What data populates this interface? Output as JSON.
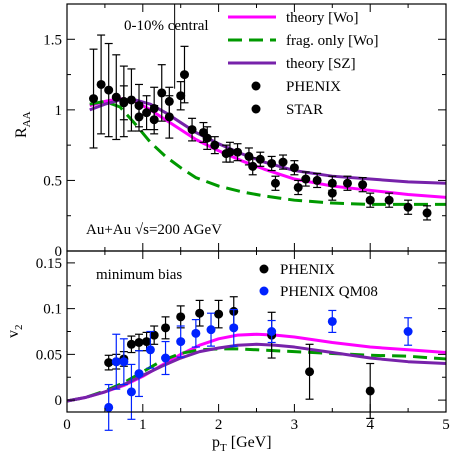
{
  "chart_data": [
    {
      "type": "scatter",
      "panel": "top",
      "ylabel_main": "R",
      "ylabel_sub": "AA",
      "xlim": [
        0,
        5
      ],
      "ylim": [
        0,
        1.75
      ],
      "x_ticks": [
        0,
        1,
        2,
        3,
        4,
        5
      ],
      "y_ticks": [
        0,
        0.5,
        1,
        1.5
      ],
      "y_tick_labels": [
        "0",
        "0.5",
        "1",
        "1.5"
      ],
      "annotations": {
        "centrality": "0-10% central",
        "system": "Au+Au √s=200 AGeV"
      },
      "legend_placement": "top-right",
      "vertical_marker_x": 1.42,
      "series": [
        {
          "name": "theory [Wo]",
          "kind": "line",
          "color": "#ff00ff",
          "x": [
            0.3,
            0.5,
            0.7,
            0.9,
            1.1,
            1.3,
            1.5,
            1.7,
            2.0,
            2.3,
            2.6,
            3.0,
            3.5,
            4.0,
            4.5,
            5.0
          ],
          "y": [
            1.03,
            1.06,
            1.08,
            1.06,
            1.0,
            0.93,
            0.86,
            0.79,
            0.71,
            0.64,
            0.58,
            0.51,
            0.46,
            0.43,
            0.4,
            0.38
          ]
        },
        {
          "name": "frag. only [Wo]",
          "kind": "dashed-line",
          "color": "#009900",
          "x": [
            0.3,
            0.5,
            0.7,
            0.9,
            1.1,
            1.3,
            1.5,
            1.7,
            2.0,
            2.3,
            2.6,
            3.0,
            3.5,
            4.0,
            4.5,
            5.0
          ],
          "y": [
            1.04,
            1.06,
            1.02,
            0.9,
            0.77,
            0.67,
            0.59,
            0.52,
            0.46,
            0.42,
            0.39,
            0.36,
            0.34,
            0.33,
            0.33,
            0.33
          ]
        },
        {
          "name": "theory [SZ]",
          "kind": "line",
          "color": "#7722aa",
          "x": [
            0.3,
            0.5,
            0.7,
            0.9,
            1.1,
            1.3,
            1.5,
            1.7,
            2.0,
            2.3,
            2.6,
            3.0,
            3.5,
            4.0,
            4.5,
            5.0
          ],
          "y": [
            1.0,
            1.04,
            1.07,
            1.07,
            1.04,
            0.98,
            0.91,
            0.84,
            0.76,
            0.69,
            0.63,
            0.57,
            0.53,
            0.51,
            0.49,
            0.48
          ]
        },
        {
          "name": "PHENIX",
          "kind": "points",
          "color": "#000000",
          "x": [
            0.35,
            0.45,
            0.55,
            0.65,
            0.75,
            0.85,
            0.95,
            1.05,
            1.15,
            1.25,
            1.35,
            1.5,
            1.65,
            1.8,
            1.95,
            2.1,
            2.25,
            2.4,
            2.55,
            2.7,
            2.85,
            3.0,
            3.15,
            3.3,
            3.5,
            3.7,
            3.9,
            4.25,
            4.5,
            4.75
          ],
          "y": [
            1.08,
            1.18,
            1.14,
            1.09,
            1.06,
            1.07,
            1.03,
            0.98,
            1.01,
            1.12,
            1.06,
            1.1,
            0.86,
            0.84,
            0.75,
            0.69,
            0.7,
            0.67,
            0.65,
            0.62,
            0.63,
            0.59,
            0.51,
            0.5,
            0.48,
            0.48,
            0.47,
            0.36,
            0.31,
            0.27
          ],
          "err": [
            0.35,
            0.35,
            0.33,
            0.3,
            0.25,
            0.22,
            0.15,
            0.12,
            0.15,
            0.2,
            0.1,
            0.1,
            0.08,
            0.07,
            0.06,
            0.06,
            0.06,
            0.06,
            0.05,
            0.05,
            0.05,
            0.05,
            0.05,
            0.05,
            0.05,
            0.05,
            0.05,
            0.05,
            0.05,
            0.05
          ]
        },
        {
          "name": "STAR",
          "kind": "points",
          "color": "#000000",
          "x": [
            0.75,
            0.95,
            1.15,
            1.35,
            1.55,
            1.85,
            2.15,
            2.45,
            2.75,
            3.05,
            3.5,
            4.0
          ],
          "y": [
            1.05,
            0.95,
            0.93,
            0.95,
            1.25,
            0.8,
            0.7,
            0.6,
            0.48,
            0.45,
            0.41,
            0.36
          ],
          "err": [
            0.12,
            0.1,
            0.1,
            0.15,
            0.2,
            0.08,
            0.07,
            0.06,
            0.05,
            0.05,
            0.05,
            0.05
          ]
        }
      ]
    },
    {
      "type": "scatter",
      "panel": "bottom",
      "xlabel_main": "p",
      "xlabel_sub": "T",
      "xlabel_unit": " [GeV]",
      "ylabel_main": "v",
      "ylabel_sub": "2",
      "xlim": [
        0,
        5
      ],
      "ylim": [
        -0.013,
        0.163
      ],
      "x_ticks": [
        0,
        1,
        2,
        3,
        4,
        5
      ],
      "x_tick_labels": [
        "0",
        "1",
        "2",
        "3",
        "4",
        "5"
      ],
      "y_ticks": [
        0,
        0.05,
        0.1,
        0.15
      ],
      "y_tick_labels": [
        "0",
        "0.05",
        "0.1",
        "0.15"
      ],
      "annotations": {
        "centrality": "minimum bias"
      },
      "legend_placement": "top-right",
      "series": [
        {
          "name": "theory [Wo]",
          "kind": "line",
          "color": "#ff00ff",
          "x": [
            0,
            0.25,
            0.5,
            0.75,
            1.0,
            1.25,
            1.5,
            1.75,
            2.0,
            2.25,
            2.5,
            2.75,
            3.0,
            3.5,
            4.0,
            4.5,
            5.0
          ],
          "y": [
            -0.001,
            0.003,
            0.009,
            0.016,
            0.026,
            0.038,
            0.05,
            0.06,
            0.067,
            0.071,
            0.072,
            0.071,
            0.069,
            0.063,
            0.058,
            0.055,
            0.052
          ]
        },
        {
          "name": "frag. only [Wo]",
          "kind": "dashed-line",
          "color": "#009900",
          "x": [
            0,
            0.25,
            0.5,
            0.75,
            1.0,
            1.25,
            1.5,
            1.75,
            2.0,
            2.25,
            2.5,
            2.75,
            3.0,
            3.5,
            4.0,
            4.5,
            5.0
          ],
          "y": [
            -0.001,
            0.003,
            0.01,
            0.019,
            0.031,
            0.043,
            0.051,
            0.055,
            0.056,
            0.056,
            0.055,
            0.054,
            0.053,
            0.051,
            0.049,
            0.048,
            0.045
          ]
        },
        {
          "name": "theory [SZ]",
          "kind": "line",
          "color": "#7722aa",
          "x": [
            0,
            0.25,
            0.5,
            0.75,
            1.0,
            1.25,
            1.5,
            1.75,
            2.0,
            2.25,
            2.5,
            2.75,
            3.0,
            3.5,
            4.0,
            4.5,
            5.0
          ],
          "y": [
            -0.001,
            0.003,
            0.009,
            0.017,
            0.027,
            0.037,
            0.046,
            0.053,
            0.057,
            0.06,
            0.061,
            0.06,
            0.058,
            0.052,
            0.046,
            0.042,
            0.04
          ]
        },
        {
          "name": "PHENIX",
          "kind": "points",
          "color": "#000000",
          "x": [
            0.55,
            0.65,
            0.75,
            0.85,
            0.95,
            1.05,
            1.15,
            1.3,
            1.5,
            1.75,
            2.0,
            2.2,
            2.7,
            3.2,
            4.0
          ],
          "y": [
            0.041,
            0.042,
            0.045,
            0.061,
            0.063,
            0.064,
            0.071,
            0.079,
            0.091,
            0.095,
            0.094,
            0.097,
            0.071,
            0.031,
            0.01
          ],
          "err": [
            0.008,
            0.008,
            0.008,
            0.009,
            0.009,
            0.01,
            0.01,
            0.012,
            0.012,
            0.014,
            0.015,
            0.016,
            0.025,
            0.03,
            0.03
          ]
        },
        {
          "name": "PHENIX QM08",
          "kind": "points",
          "color": "#0022ff",
          "x": [
            0.55,
            0.65,
            0.75,
            0.85,
            0.95,
            1.1,
            1.3,
            1.5,
            1.7,
            1.9,
            2.2,
            2.7,
            3.5,
            4.5
          ],
          "y": [
            -0.008,
            0.042,
            0.042,
            0.009,
            0.029,
            0.055,
            0.046,
            0.064,
            0.073,
            0.077,
            0.079,
            0.075,
            0.086,
            0.075
          ],
          "err": [
            0.025,
            0.03,
            0.025,
            0.03,
            0.025,
            0.02,
            0.018,
            0.017,
            0.015,
            0.018,
            0.02,
            0.012,
            0.012,
            0.015
          ]
        }
      ]
    }
  ]
}
